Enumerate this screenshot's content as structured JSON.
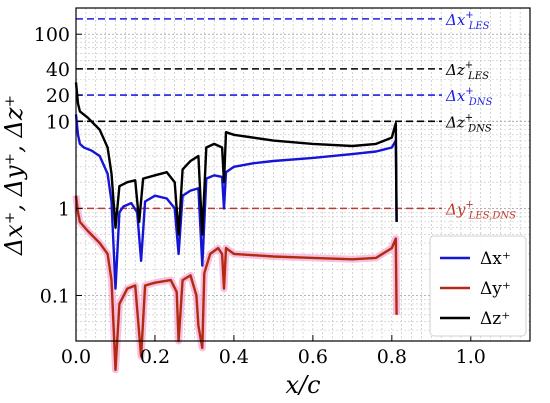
{
  "chart_data": {
    "type": "line",
    "title": "",
    "xlabel": "x/c",
    "ylabel": "Δx⁺, Δy⁺, Δz⁺",
    "xlim": [
      0.0,
      1.15
    ],
    "ylim": [
      0.03,
      200
    ],
    "y_scale": "log",
    "grid": true,
    "x_ticks": [
      0.0,
      0.2,
      0.4,
      0.6,
      0.8,
      1.0
    ],
    "x_tick_labels": [
      "0.0",
      "0.2",
      "0.4",
      "0.6",
      "0.8",
      "1.0"
    ],
    "y_ticks": [
      0.1,
      1,
      10,
      20,
      40,
      100
    ],
    "y_tick_labels": [
      "0.1",
      "1",
      "10",
      "20",
      "40",
      "100"
    ],
    "reference_lines": [
      {
        "name": "Δx⁺LES",
        "base": "Δx",
        "sup": "+",
        "sub": "LES",
        "y": 150,
        "color": "#1f1fe0",
        "dash": "dashed"
      },
      {
        "name": "Δz⁺LES",
        "base": "Δz",
        "sup": "+",
        "sub": "LES",
        "y": 40,
        "color": "#000000",
        "dash": "dashed"
      },
      {
        "name": "Δx⁺DNS",
        "base": "Δx",
        "sup": "+",
        "sub": "DNS",
        "y": 20,
        "color": "#1f1fe0",
        "dash": "dashed"
      },
      {
        "name": "Δz⁺DNS",
        "base": "Δz",
        "sup": "+",
        "sub": "DNS",
        "y": 10,
        "color": "#000000",
        "dash": "dashed"
      },
      {
        "name": "Δy⁺LES,DNS",
        "base": "Δy",
        "sup": "+",
        "sub": "LES,DNS",
        "y": 1,
        "color": "#c0392b",
        "dash": "dashed"
      }
    ],
    "legend": {
      "position": "bottom-right",
      "entries": [
        {
          "label": "Δx⁺",
          "color": "#1515d6"
        },
        {
          "label": "Δy⁺",
          "color": "#b22a10"
        },
        {
          "label": "Δz⁺",
          "color": "#000000"
        }
      ]
    },
    "series": [
      {
        "name": "Δx⁺",
        "color": "#1515d6",
        "x": [
          0.0,
          0.005,
          0.01,
          0.02,
          0.04,
          0.06,
          0.08,
          0.09,
          0.1,
          0.11,
          0.12,
          0.14,
          0.155,
          0.165,
          0.175,
          0.2,
          0.23,
          0.25,
          0.26,
          0.27,
          0.29,
          0.31,
          0.32,
          0.33,
          0.35,
          0.37,
          0.375,
          0.38,
          0.4,
          0.45,
          0.5,
          0.6,
          0.7,
          0.76,
          0.8,
          0.81,
          0.812
        ],
        "y": [
          12,
          7,
          5.5,
          5,
          4.6,
          4,
          2.5,
          1.2,
          0.12,
          0.9,
          1.05,
          1.15,
          0.9,
          0.25,
          1.2,
          1.4,
          1.3,
          1.0,
          0.3,
          1.4,
          1.6,
          1.7,
          0.22,
          2.2,
          2.4,
          2.3,
          1.0,
          2.6,
          3.0,
          3.3,
          3.5,
          3.8,
          4.2,
          4.5,
          5.0,
          6.0,
          0.7
        ]
      },
      {
        "name": "Δy⁺",
        "color": "#b22a10",
        "x": [
          0.0,
          0.005,
          0.01,
          0.03,
          0.06,
          0.08,
          0.09,
          0.1,
          0.11,
          0.13,
          0.15,
          0.165,
          0.175,
          0.2,
          0.24,
          0.255,
          0.26,
          0.27,
          0.29,
          0.305,
          0.31,
          0.32,
          0.325,
          0.34,
          0.36,
          0.37,
          0.375,
          0.38,
          0.4,
          0.5,
          0.6,
          0.7,
          0.76,
          0.8,
          0.81,
          0.812
        ],
        "y": [
          1.4,
          0.9,
          0.7,
          0.55,
          0.4,
          0.3,
          0.15,
          0.014,
          0.08,
          0.12,
          0.13,
          0.02,
          0.13,
          0.14,
          0.15,
          0.11,
          0.03,
          0.15,
          0.17,
          0.1,
          0.045,
          0.025,
          0.18,
          0.3,
          0.35,
          0.3,
          0.12,
          0.35,
          0.3,
          0.28,
          0.27,
          0.26,
          0.27,
          0.35,
          0.45,
          0.06
        ]
      },
      {
        "name": "Δz⁺",
        "color": "#000000",
        "x": [
          0.0,
          0.005,
          0.01,
          0.03,
          0.06,
          0.08,
          0.09,
          0.1,
          0.11,
          0.13,
          0.15,
          0.16,
          0.17,
          0.2,
          0.23,
          0.25,
          0.26,
          0.27,
          0.29,
          0.31,
          0.32,
          0.33,
          0.35,
          0.37,
          0.375,
          0.38,
          0.4,
          0.5,
          0.6,
          0.7,
          0.76,
          0.8,
          0.81,
          0.812
        ],
        "y": [
          28,
          16,
          13,
          11,
          8,
          5,
          2.5,
          0.6,
          1.8,
          2.0,
          2.1,
          0.7,
          2.2,
          2.4,
          2.6,
          2.0,
          0.5,
          2.8,
          3.5,
          4.0,
          0.5,
          5.0,
          5.5,
          5.0,
          2.0,
          7.5,
          7.0,
          6.0,
          5.5,
          5.2,
          5.5,
          6.5,
          9.5,
          0.7
        ]
      }
    ]
  }
}
